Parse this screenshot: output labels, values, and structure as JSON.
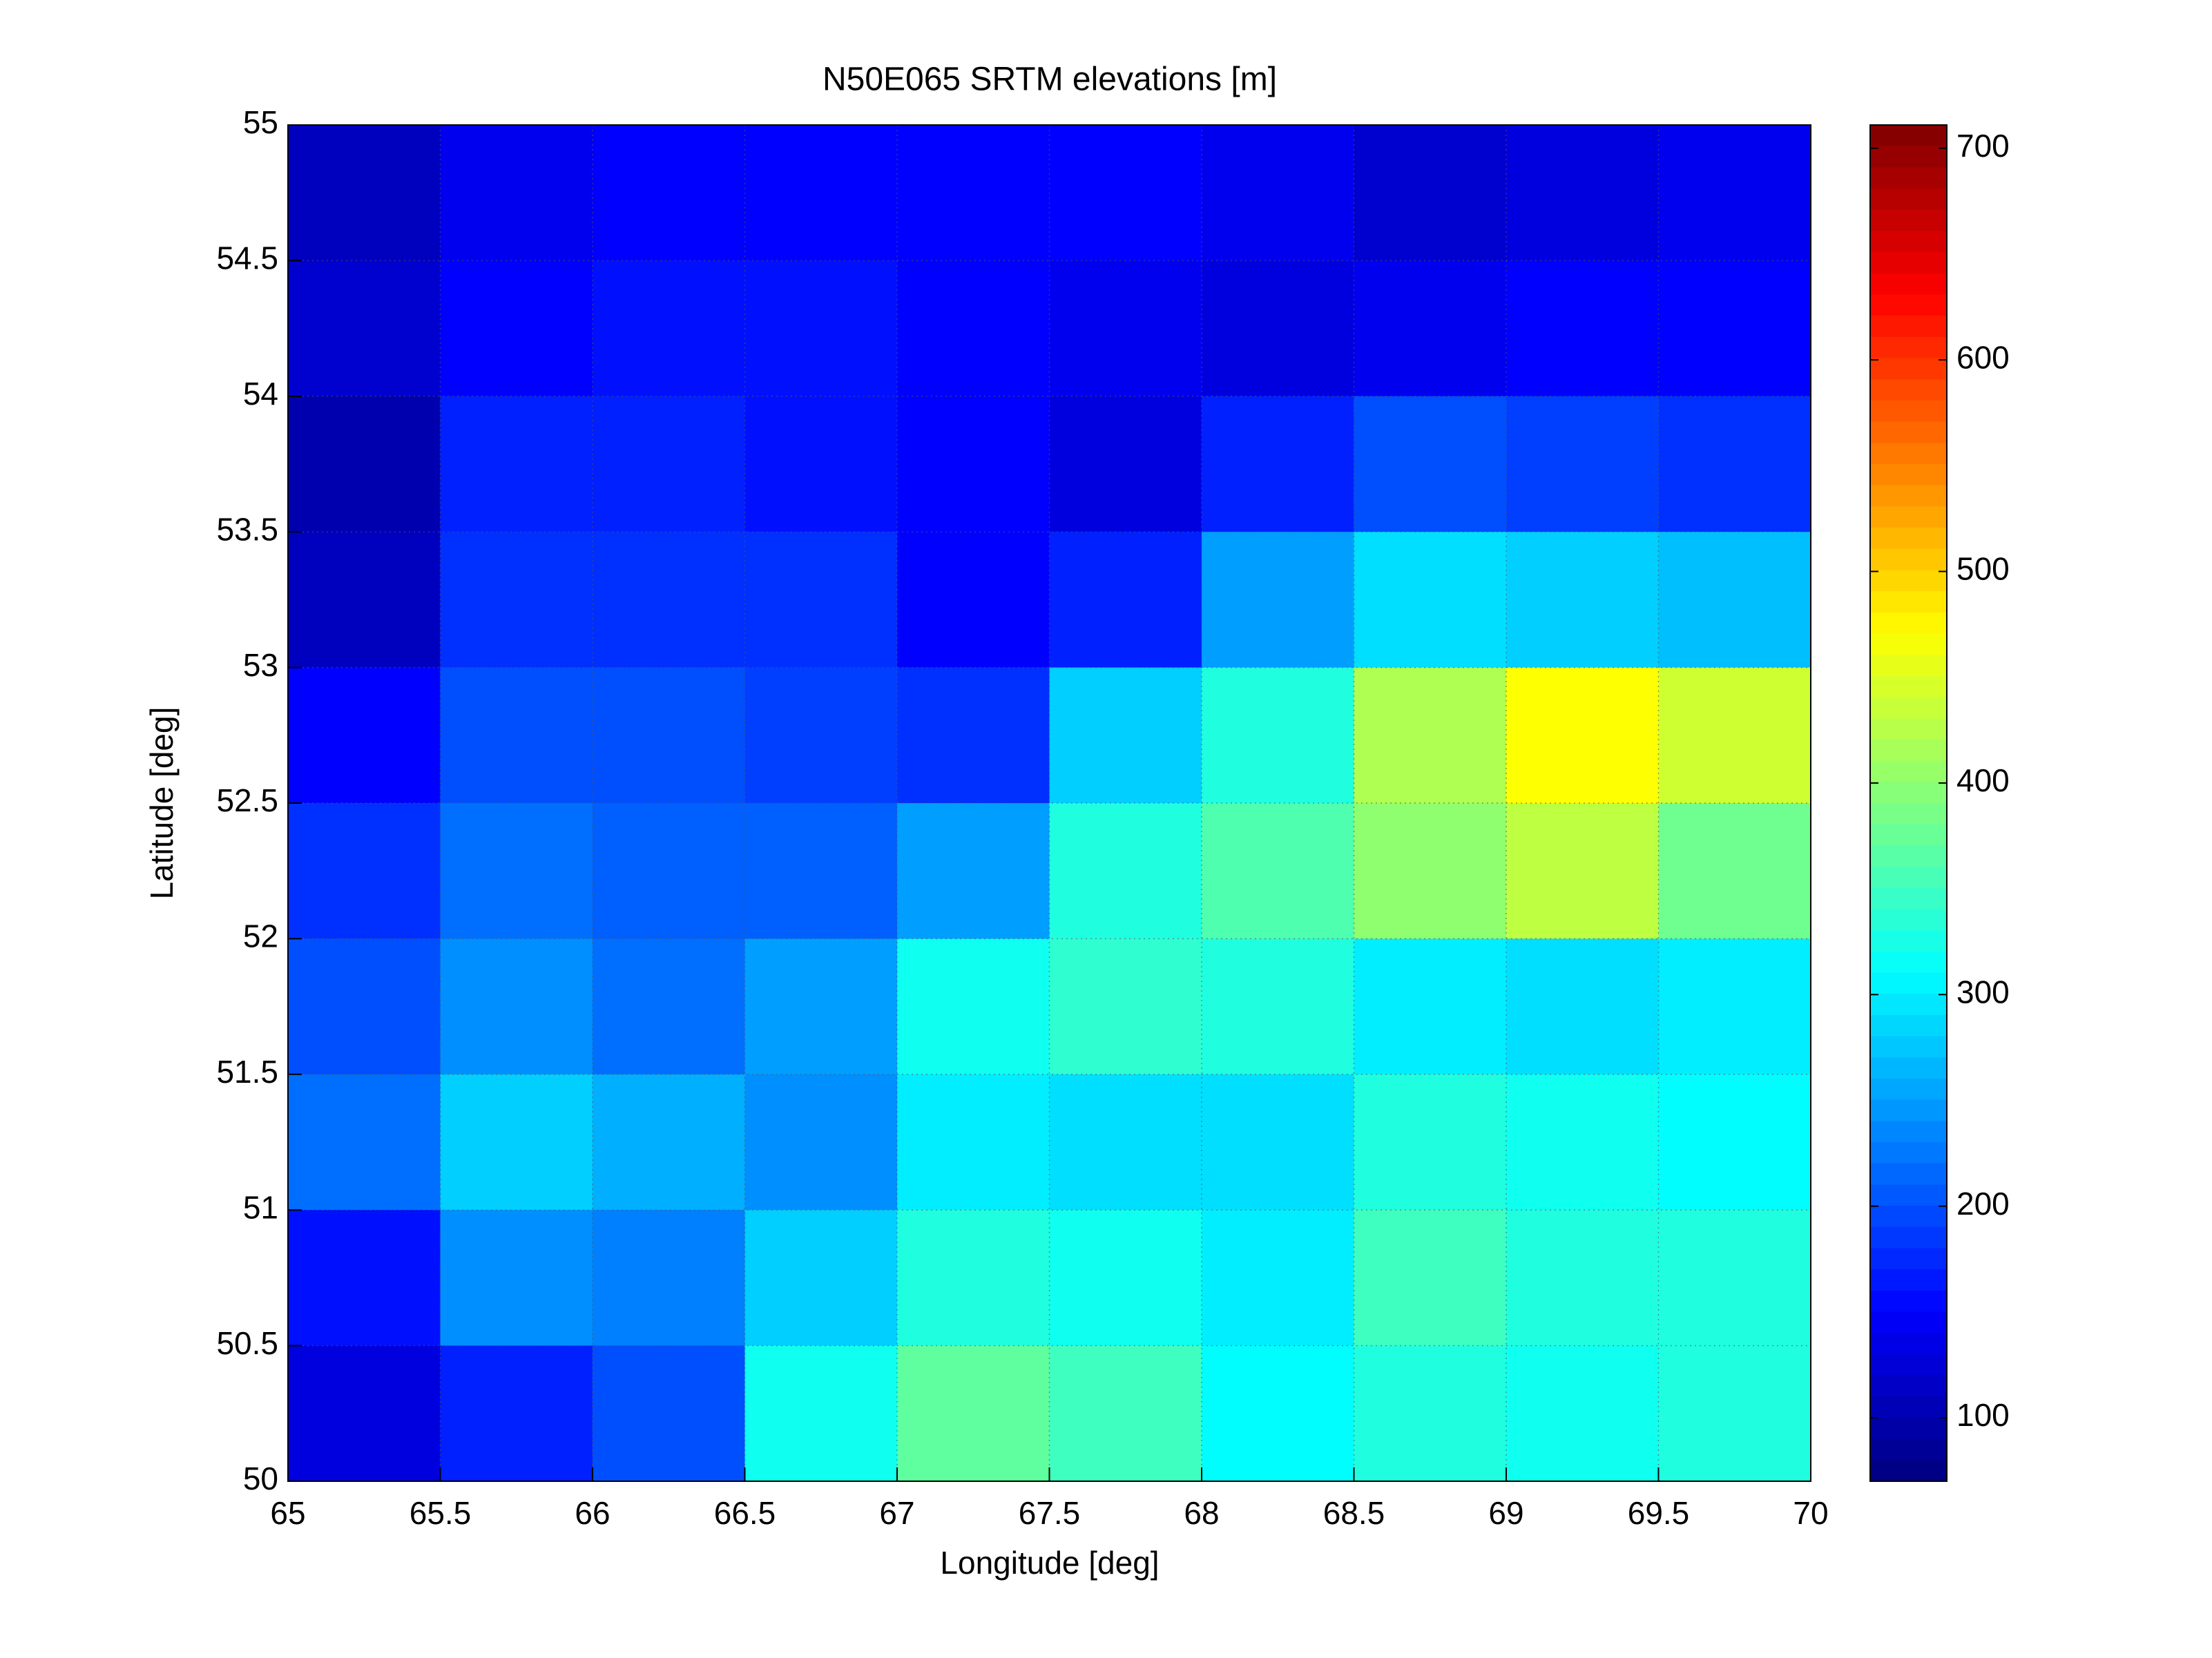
{
  "chart_data": {
    "type": "heatmap",
    "title": "N50E065 SRTM elevations [m]",
    "xlabel": "Longitude [deg]",
    "ylabel": "Latitude [deg]",
    "xlim": [
      65,
      70
    ],
    "ylim": [
      50,
      55
    ],
    "xticks": [
      65,
      65.5,
      66,
      66.5,
      67,
      67.5,
      68,
      68.5,
      69,
      69.5,
      70
    ],
    "yticks": [
      50,
      50.5,
      51,
      51.5,
      52,
      52.5,
      53,
      53.5,
      54,
      54.5,
      55
    ],
    "colormap": "jet",
    "clim": [
      70,
      711
    ],
    "cticks": [
      100,
      200,
      300,
      400,
      500,
      600,
      700
    ],
    "grid": true,
    "z": [
      [
        110,
        140,
        150,
        150,
        150,
        150,
        140,
        120,
        130,
        140
      ],
      [
        120,
        150,
        160,
        160,
        150,
        140,
        130,
        140,
        150,
        150
      ],
      [
        100,
        170,
        170,
        160,
        150,
        130,
        170,
        200,
        190,
        180
      ],
      [
        110,
        180,
        180,
        180,
        150,
        170,
        250,
        290,
        280,
        270
      ],
      [
        150,
        200,
        200,
        190,
        180,
        280,
        330,
        420,
        470,
        440
      ],
      [
        180,
        220,
        210,
        210,
        250,
        330,
        360,
        400,
        430,
        380
      ],
      [
        200,
        240,
        220,
        250,
        320,
        340,
        330,
        300,
        290,
        300
      ],
      [
        220,
        280,
        260,
        240,
        300,
        290,
        290,
        330,
        320,
        310
      ],
      [
        160,
        240,
        230,
        280,
        330,
        320,
        300,
        350,
        330,
        330
      ],
      [
        130,
        170,
        200,
        320,
        370,
        350,
        310,
        330,
        320,
        330
      ]
    ]
  }
}
